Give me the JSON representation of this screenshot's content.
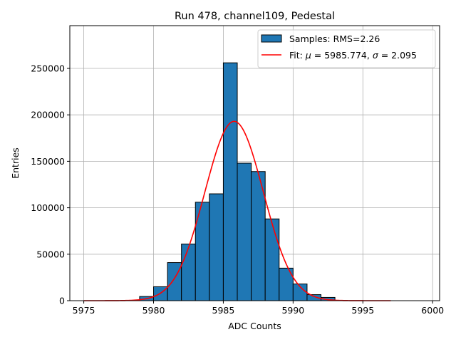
{
  "chart_data": {
    "type": "bar",
    "title": "Run 478, channel109, Pedestal",
    "xlabel": "ADC Counts",
    "ylabel": "Entries",
    "xlim": [
      5974,
      6000.5
    ],
    "ylim": [
      0,
      296000
    ],
    "xticks": [
      5975,
      5980,
      5985,
      5990,
      5995,
      6000
    ],
    "xtick_labels": [
      "5975",
      "5980",
      "5985",
      "5990",
      "5995",
      "6000"
    ],
    "yticks": [
      0,
      50000,
      100000,
      150000,
      200000,
      250000
    ],
    "ytick_labels": [
      "0",
      "50000",
      "100000",
      "150000",
      "200000",
      "250000"
    ],
    "grid": true,
    "bin_width": 1,
    "bins": [
      {
        "x_left": 5979,
        "value": 4500
      },
      {
        "x_left": 5980,
        "value": 15000
      },
      {
        "x_left": 5981,
        "value": 41000
      },
      {
        "x_left": 5982,
        "value": 61000
      },
      {
        "x_left": 5983,
        "value": 106000
      },
      {
        "x_left": 5984,
        "value": 115000
      },
      {
        "x_left": 5985,
        "value": 256000
      },
      {
        "x_left": 5986,
        "value": 148000
      },
      {
        "x_left": 5987,
        "value": 139000
      },
      {
        "x_left": 5988,
        "value": 88000
      },
      {
        "x_left": 5989,
        "value": 35000
      },
      {
        "x_left": 5990,
        "value": 18000
      },
      {
        "x_left": 5991,
        "value": 6500
      },
      {
        "x_left": 5992,
        "value": 3500
      }
    ],
    "series": [
      {
        "name": "Samples: RMS=2.26",
        "kind": "histogram",
        "color": "#1f77b4"
      },
      {
        "name": "Fit",
        "kind": "gaussian",
        "color": "#ff0000",
        "mu": 5985.774,
        "sigma": 2.095,
        "amplitude": 193000,
        "x_range": [
          5975,
          5997
        ]
      }
    ],
    "legend": {
      "placement": "top-right",
      "samples_label": "Samples: RMS=2.26",
      "fit_prefix": "Fit: ",
      "mu_symbol": "μ",
      "mu_text": " = 5985.774, ",
      "sigma_symbol": "σ",
      "sigma_text": " = 2.095"
    }
  }
}
